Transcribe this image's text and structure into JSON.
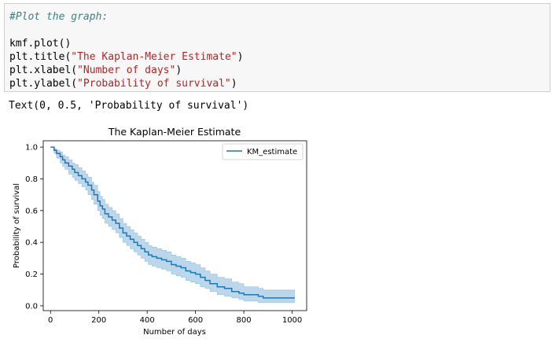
{
  "code_cell": {
    "comment": "#Plot the graph:",
    "lines": [
      {
        "pre": "kmf.plot()",
        "str": "",
        "post": ""
      },
      {
        "pre": "plt.title(",
        "str": "\"The Kaplan-Meier Estimate\"",
        "post": ")"
      },
      {
        "pre": "plt.xlabel(",
        "str": "\"Number of days\"",
        "post": ")"
      },
      {
        "pre": "plt.ylabel(",
        "str": "\"Probability of survival\"",
        "post": ")"
      }
    ]
  },
  "output": {
    "text": "Text(0, 0.5, 'Probability of survival')"
  },
  "colors": {
    "line": "#1f77b4",
    "band": "#a6c8e3"
  },
  "chart_data": {
    "type": "line",
    "title": "The Kaplan-Meier Estimate",
    "xlabel": "Number of days",
    "ylabel": "Probability of survival",
    "xlim": [
      -30,
      1060
    ],
    "ylim": [
      -0.03,
      1.04
    ],
    "xticks": [
      0,
      200,
      400,
      600,
      800,
      1000
    ],
    "yticks": [
      0.0,
      0.2,
      0.4,
      0.6,
      0.8,
      1.0
    ],
    "xtick_labels": [
      "0",
      "200",
      "400",
      "600",
      "800",
      "1000"
    ],
    "ytick_labels": [
      "0.0",
      "0.2",
      "0.4",
      "0.6",
      "0.8",
      "1.0"
    ],
    "legend": {
      "position": "top-right",
      "entries": [
        "KM_estimate"
      ]
    },
    "grid": false,
    "series": [
      {
        "name": "KM_estimate",
        "step": true,
        "x": [
          0,
          15,
          25,
          40,
          50,
          60,
          75,
          90,
          100,
          115,
          130,
          145,
          155,
          170,
          180,
          195,
          205,
          215,
          225,
          240,
          255,
          270,
          285,
          300,
          315,
          330,
          345,
          360,
          375,
          390,
          405,
          420,
          440,
          460,
          480,
          500,
          520,
          540,
          560,
          580,
          600,
          620,
          640,
          660,
          690,
          720,
          750,
          780,
          800,
          830,
          860,
          880,
          1010
        ],
        "y": [
          1.0,
          0.98,
          0.96,
          0.94,
          0.92,
          0.9,
          0.88,
          0.86,
          0.84,
          0.82,
          0.8,
          0.78,
          0.76,
          0.73,
          0.7,
          0.66,
          0.63,
          0.61,
          0.58,
          0.56,
          0.54,
          0.52,
          0.49,
          0.46,
          0.44,
          0.42,
          0.4,
          0.38,
          0.36,
          0.34,
          0.32,
          0.31,
          0.3,
          0.29,
          0.28,
          0.26,
          0.25,
          0.24,
          0.22,
          0.21,
          0.2,
          0.18,
          0.16,
          0.14,
          0.12,
          0.11,
          0.09,
          0.08,
          0.07,
          0.07,
          0.06,
          0.05,
          0.05
        ],
        "ci_lower": [
          1.0,
          0.96,
          0.93,
          0.9,
          0.88,
          0.86,
          0.83,
          0.81,
          0.79,
          0.77,
          0.75,
          0.73,
          0.7,
          0.67,
          0.64,
          0.6,
          0.57,
          0.55,
          0.52,
          0.5,
          0.48,
          0.46,
          0.43,
          0.4,
          0.38,
          0.36,
          0.34,
          0.32,
          0.3,
          0.28,
          0.26,
          0.25,
          0.24,
          0.23,
          0.22,
          0.2,
          0.19,
          0.18,
          0.16,
          0.15,
          0.14,
          0.12,
          0.11,
          0.09,
          0.07,
          0.06,
          0.05,
          0.04,
          0.03,
          0.03,
          0.02,
          0.02,
          0.02
        ],
        "ci_upper": [
          1.0,
          0.99,
          0.98,
          0.97,
          0.95,
          0.94,
          0.92,
          0.9,
          0.89,
          0.87,
          0.85,
          0.83,
          0.81,
          0.78,
          0.76,
          0.72,
          0.69,
          0.67,
          0.64,
          0.62,
          0.6,
          0.58,
          0.55,
          0.52,
          0.5,
          0.48,
          0.46,
          0.44,
          0.42,
          0.4,
          0.38,
          0.37,
          0.36,
          0.35,
          0.34,
          0.32,
          0.31,
          0.3,
          0.28,
          0.27,
          0.26,
          0.24,
          0.22,
          0.2,
          0.18,
          0.17,
          0.15,
          0.14,
          0.12,
          0.12,
          0.11,
          0.1,
          0.1
        ]
      }
    ]
  }
}
